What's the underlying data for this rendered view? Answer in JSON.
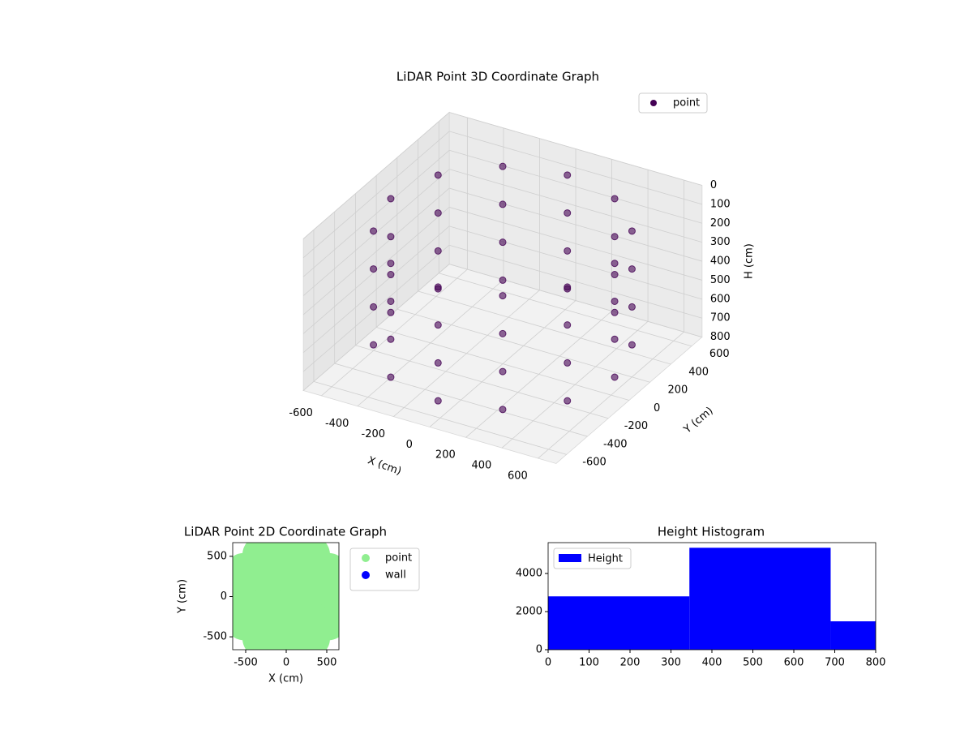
{
  "chart_data": [
    {
      "type": "scatter3d",
      "title": "LiDAR Point 3D Coordinate Graph",
      "xlabel": "X (cm)",
      "ylabel": "Y (cm)",
      "zlabel": "H (cm)",
      "xlim": [
        -700,
        700
      ],
      "ylim": [
        -700,
        700
      ],
      "zlim": [
        0,
        800
      ],
      "z_inverted": true,
      "xticks": [
        -600,
        -400,
        -200,
        0,
        200,
        400,
        600
      ],
      "yticks": [
        -600,
        -400,
        -200,
        0,
        200,
        400,
        600
      ],
      "zticks": [
        0,
        100,
        200,
        300,
        400,
        500,
        600,
        700,
        800
      ],
      "grid": true,
      "legend": "upper right",
      "series": [
        {
          "name": "point",
          "color": "#440154",
          "x": [
            620,
            537,
            310,
            0,
            -310,
            -537,
            -620,
            -537,
            -310,
            0,
            310,
            537,
            620,
            537,
            310,
            0,
            -310,
            -537,
            -620,
            -537,
            -310,
            0,
            310,
            537,
            620,
            537,
            310,
            0,
            -310,
            -537,
            -620,
            -537,
            -310,
            0,
            310,
            537,
            620,
            537,
            310,
            0,
            -310,
            -537,
            -620,
            -537,
            -310,
            0,
            310,
            537
          ],
          "y": [
            0,
            310,
            537,
            620,
            537,
            310,
            0,
            -310,
            -537,
            -620,
            -537,
            -310,
            0,
            310,
            537,
            620,
            537,
            310,
            0,
            -310,
            -537,
            -620,
            -537,
            -310,
            0,
            310,
            537,
            620,
            537,
            310,
            0,
            -310,
            -537,
            -620,
            -537,
            -310,
            0,
            310,
            537,
            620,
            537,
            310,
            0,
            -310,
            -537,
            -620,
            -537,
            -310
          ],
          "z": [
            100,
            100,
            100,
            100,
            100,
            100,
            100,
            100,
            100,
            100,
            100,
            100,
            300,
            300,
            300,
            300,
            300,
            300,
            300,
            300,
            300,
            300,
            300,
            300,
            500,
            500,
            500,
            500,
            500,
            500,
            500,
            500,
            500,
            500,
            500,
            500,
            700,
            700,
            700,
            700,
            700,
            700,
            700,
            700,
            700,
            700,
            700,
            700
          ]
        }
      ]
    },
    {
      "type": "scatter",
      "title": "LiDAR Point 2D Coordinate Graph",
      "xlabel": "X (cm)",
      "ylabel": "Y (cm)",
      "xlim": [
        -660,
        650
      ],
      "ylim": [
        -660,
        670
      ],
      "xticks": [
        -500,
        0,
        500
      ],
      "yticks": [
        -500,
        0,
        500
      ],
      "legend": "outside right",
      "series": [
        {
          "name": "point",
          "color": "#90ee90",
          "x": [
            600,
            520,
            300,
            0,
            -300,
            -520,
            -600,
            -520,
            -300,
            0,
            300,
            520,
            0,
            300,
            -300,
            0,
            0,
            300,
            -300,
            300,
            -300
          ],
          "y": [
            0,
            300,
            520,
            600,
            520,
            300,
            0,
            -300,
            -520,
            -600,
            -520,
            -300,
            0,
            0,
            0,
            300,
            -300,
            300,
            300,
            -300,
            -300
          ]
        },
        {
          "name": "wall",
          "color": "#0000ff",
          "x": [],
          "y": []
        }
      ]
    },
    {
      "type": "histogram",
      "title": "Height Histogram",
      "bins": [
        0,
        345,
        690,
        1035
      ],
      "counts": [
        2800,
        5350,
        1490
      ],
      "xlim": [
        0,
        800
      ],
      "ylim": [
        0,
        5620
      ],
      "xticks": [
        0,
        100,
        200,
        300,
        400,
        500,
        600,
        700,
        800
      ],
      "yticks": [
        0,
        2000,
        4000
      ],
      "legend": "upper left",
      "series": [
        {
          "name": "Height",
          "color": "#0000ff"
        }
      ]
    }
  ]
}
